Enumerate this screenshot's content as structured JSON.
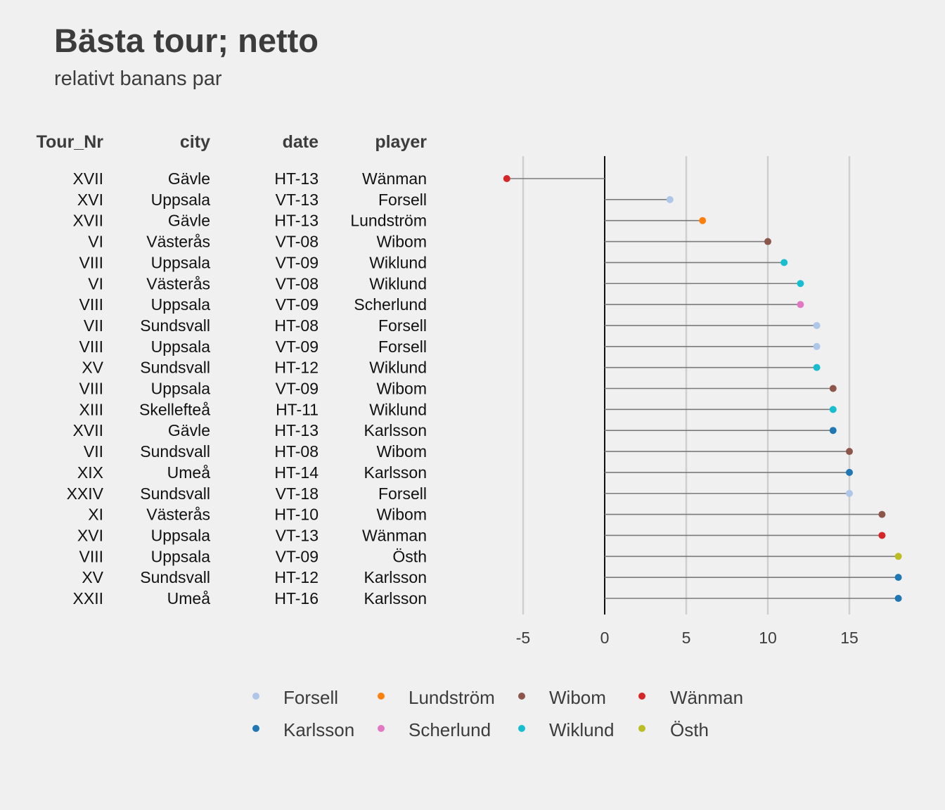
{
  "chart_data": {
    "type": "lollipop",
    "title": "Bästa tour; netto",
    "subtitle": "relativt banans par",
    "columns": [
      "Tour_Nr",
      "city",
      "date",
      "player"
    ],
    "rows": [
      {
        "tour": "XVII",
        "city": "Gävle",
        "date": "HT-13",
        "player": "Wänman",
        "value": -6
      },
      {
        "tour": "XVI",
        "city": "Uppsala",
        "date": "VT-13",
        "player": "Forsell",
        "value": 4
      },
      {
        "tour": "XVII",
        "city": "Gävle",
        "date": "HT-13",
        "player": "Lundström",
        "value": 6
      },
      {
        "tour": "VI",
        "city": "Västerås",
        "date": "VT-08",
        "player": "Wibom",
        "value": 10
      },
      {
        "tour": "VIII",
        "city": "Uppsala",
        "date": "VT-09",
        "player": "Wiklund",
        "value": 11
      },
      {
        "tour": "VI",
        "city": "Västerås",
        "date": "VT-08",
        "player": "Wiklund",
        "value": 12
      },
      {
        "tour": "VIII",
        "city": "Uppsala",
        "date": "VT-09",
        "player": "Scherlund",
        "value": 12
      },
      {
        "tour": "VII",
        "city": "Sundsvall",
        "date": "HT-08",
        "player": "Forsell",
        "value": 13
      },
      {
        "tour": "VIII",
        "city": "Uppsala",
        "date": "VT-09",
        "player": "Forsell",
        "value": 13
      },
      {
        "tour": "XV",
        "city": "Sundsvall",
        "date": "HT-12",
        "player": "Wiklund",
        "value": 13
      },
      {
        "tour": "VIII",
        "city": "Uppsala",
        "date": "VT-09",
        "player": "Wibom",
        "value": 14
      },
      {
        "tour": "XIII",
        "city": "Skellefteå",
        "date": "HT-11",
        "player": "Wiklund",
        "value": 14
      },
      {
        "tour": "XVII",
        "city": "Gävle",
        "date": "HT-13",
        "player": "Karlsson",
        "value": 14
      },
      {
        "tour": "VII",
        "city": "Sundsvall",
        "date": "HT-08",
        "player": "Wibom",
        "value": 15
      },
      {
        "tour": "XIX",
        "city": "Umeå",
        "date": "HT-14",
        "player": "Karlsson",
        "value": 15
      },
      {
        "tour": "XXIV",
        "city": "Sundsvall",
        "date": "VT-18",
        "player": "Forsell",
        "value": 15
      },
      {
        "tour": "XI",
        "city": "Västerås",
        "date": "HT-10",
        "player": "Wibom",
        "value": 17
      },
      {
        "tour": "XVI",
        "city": "Uppsala",
        "date": "VT-13",
        "player": "Wänman",
        "value": 17
      },
      {
        "tour": "VIII",
        "city": "Uppsala",
        "date": "VT-09",
        "player": "Östh",
        "value": 18
      },
      {
        "tour": "XV",
        "city": "Sundsvall",
        "date": "HT-12",
        "player": "Karlsson",
        "value": 18
      },
      {
        "tour": "XXII",
        "city": "Umeå",
        "date": "HT-16",
        "player": "Karlsson",
        "value": 18
      }
    ],
    "x_ticks": [
      -5,
      0,
      5,
      10,
      15
    ],
    "xlim": [
      -6.5,
      18.5
    ],
    "grid": true,
    "legend_position": "bottom",
    "legend": [
      {
        "name": "Forsell",
        "color": "#aec7e8"
      },
      {
        "name": "Karlsson",
        "color": "#1f77b4"
      },
      {
        "name": "Lundström",
        "color": "#ff7f0e"
      },
      {
        "name": "Scherlund",
        "color": "#e377c2"
      },
      {
        "name": "Wibom",
        "color": "#8c564b"
      },
      {
        "name": "Wiklund",
        "color": "#17becf"
      },
      {
        "name": "Wänman",
        "color": "#d62728"
      },
      {
        "name": "Östh",
        "color": "#bcbd22"
      }
    ]
  }
}
